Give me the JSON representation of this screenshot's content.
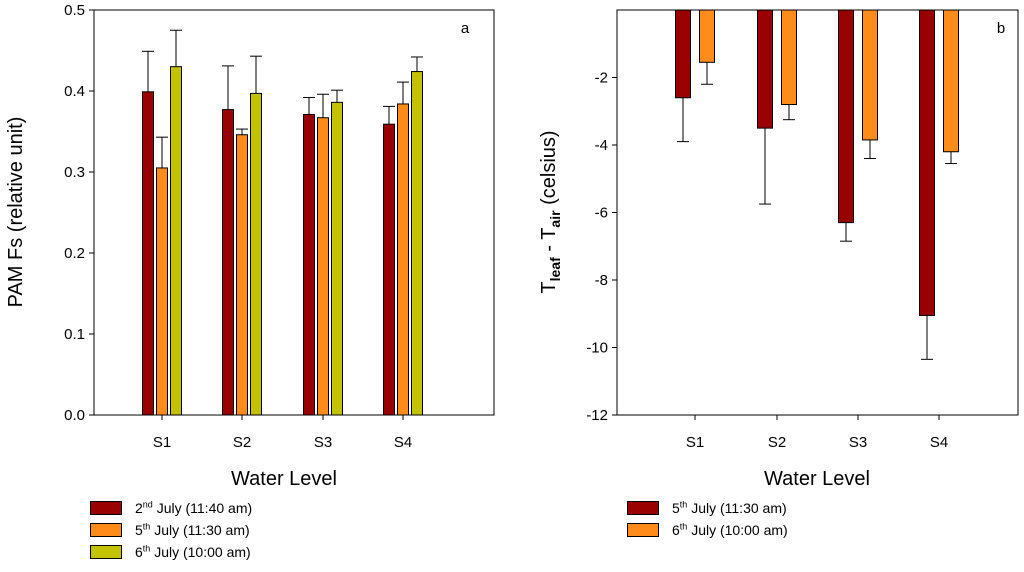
{
  "chart_data": [
    {
      "type": "bar",
      "panel_label": "a",
      "ylabel": "PAM Fs (relative unit)",
      "xlabel": "Water Level",
      "categories": [
        "S1",
        "S2",
        "S3",
        "S4"
      ],
      "ylim": [
        0,
        0.5
      ],
      "yticks": [
        "0.0",
        "0.1",
        "0.2",
        "0.3",
        "0.4",
        "0.5"
      ],
      "ytick_values": [
        0,
        0.1,
        0.2,
        0.3,
        0.4,
        0.5
      ],
      "legend_position": "below",
      "series": [
        {
          "name_day": "2",
          "name_sup": "nd",
          "name_rest": " July (11:40 am)",
          "color": "#990000",
          "values": [
            0.399,
            0.377,
            0.371,
            0.359
          ],
          "errors": [
            0.05,
            0.054,
            0.021,
            0.022
          ]
        },
        {
          "name_day": "5",
          "name_sup": "th",
          "name_rest": " July (11:30 am)",
          "color": "#ff8c1a",
          "values": [
            0.305,
            0.346,
            0.367,
            0.384
          ],
          "errors": [
            0.038,
            0.007,
            0.029,
            0.027
          ]
        },
        {
          "name_day": "6",
          "name_sup": "th",
          "name_rest": " July (10:00 am)",
          "color": "#c2c200",
          "values": [
            0.43,
            0.397,
            0.386,
            0.424
          ],
          "errors": [
            0.045,
            0.046,
            0.015,
            0.018
          ]
        }
      ]
    },
    {
      "type": "bar",
      "panel_label": "b",
      "ylabel_main": "T",
      "ylabel_sub1": "leaf",
      "ylabel_mid": " - T",
      "ylabel_sub2": "air",
      "ylabel_rest": " (celsius)",
      "xlabel": "Water Level",
      "categories": [
        "S1",
        "S2",
        "S3",
        "S4"
      ],
      "ylim": [
        -12,
        0
      ],
      "yticks": [
        "-2",
        "-4",
        "-6",
        "-8",
        "-10",
        "-12"
      ],
      "ytick_values": [
        -2,
        -4,
        -6,
        -8,
        -10,
        -12
      ],
      "legend_position": "below",
      "series": [
        {
          "name_day": "5",
          "name_sup": "th",
          "name_rest": " July (11:30 am)",
          "color": "#990000",
          "values": [
            -2.6,
            -3.5,
            -6.3,
            -9.05
          ],
          "errors": [
            1.3,
            2.25,
            0.55,
            1.3
          ]
        },
        {
          "name_day": "6",
          "name_sup": "th",
          "name_rest": " July (10:00 am)",
          "color": "#ff8c1a",
          "values": [
            -1.55,
            -2.8,
            -3.85,
            -4.2
          ],
          "errors": [
            0.65,
            0.45,
            0.55,
            0.35
          ]
        }
      ]
    }
  ]
}
